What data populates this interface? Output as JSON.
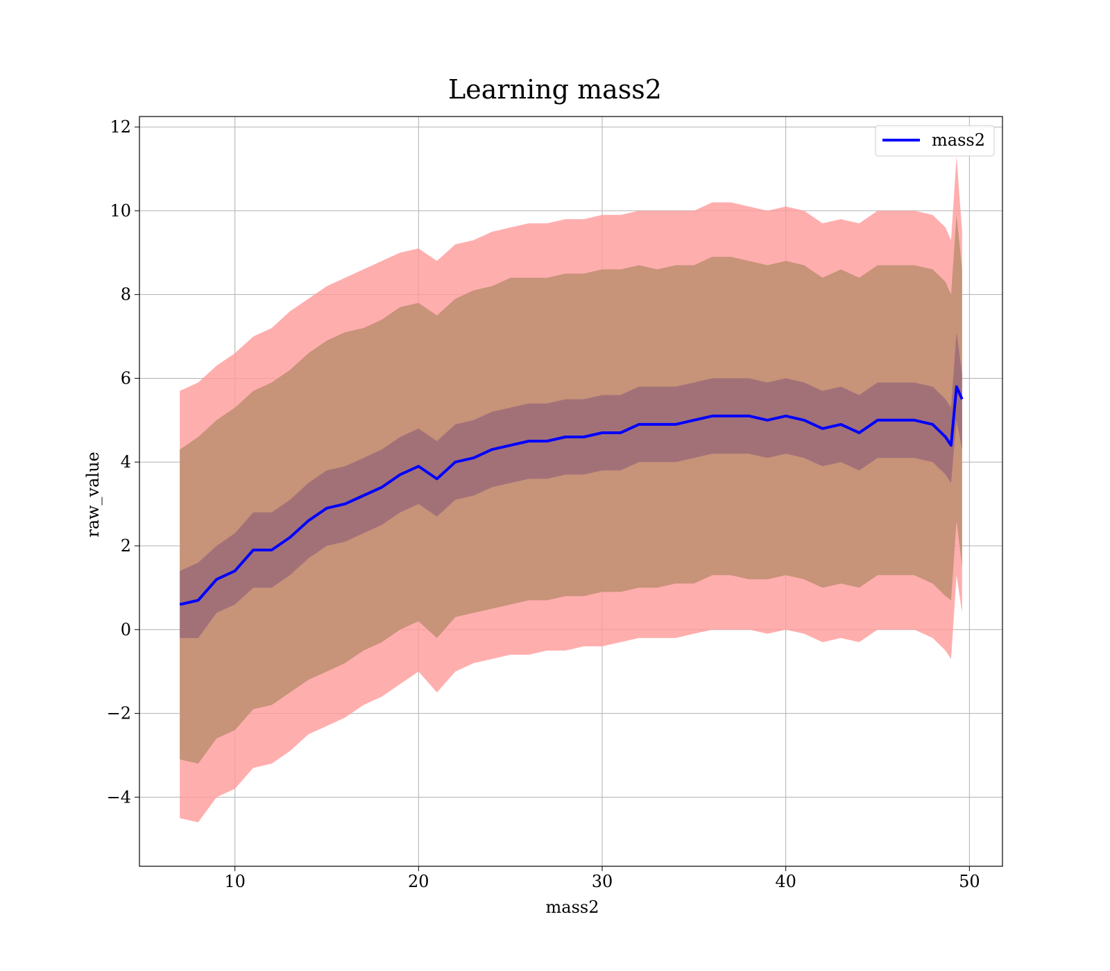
{
  "chart_data": {
    "type": "line",
    "title": "Learning mass2",
    "xlabel": "mass2",
    "ylabel": "raw_value",
    "xlim": [
      4.8,
      51.8
    ],
    "ylim": [
      -5.65,
      12.25
    ],
    "x_ticks": [
      10,
      20,
      30,
      40,
      50
    ],
    "y_ticks": [
      12,
      10,
      8,
      6,
      4,
      2,
      0,
      -2,
      -4
    ],
    "x_tick_labels": [
      "10",
      "20",
      "30",
      "40",
      "50"
    ],
    "y_tick_labels": [
      "12",
      "10",
      "8",
      "6",
      "4",
      "2",
      "0",
      "−2",
      "−4"
    ],
    "grid": true,
    "legend": {
      "position": "top-right",
      "entries": [
        "mass2"
      ]
    },
    "colors": {
      "mean": "#0000ff",
      "band_outer": "#ff9a9a",
      "band_middle": "#c49176",
      "band_inner": "#9b6b78"
    },
    "x": [
      7.0,
      8.0,
      9.0,
      10.0,
      11.0,
      12.0,
      13.0,
      14.0,
      15.0,
      16.0,
      17.0,
      18.0,
      19.0,
      20.0,
      21.0,
      22.0,
      23.0,
      24.0,
      25.0,
      26.0,
      27.0,
      28.0,
      29.0,
      30.0,
      31.0,
      32.0,
      33.0,
      34.0,
      35.0,
      36.0,
      37.0,
      38.0,
      39.0,
      40.0,
      41.0,
      42.0,
      43.0,
      44.0,
      45.0,
      46.0,
      47.0,
      48.0,
      48.7,
      49.0,
      49.3,
      49.6
    ],
    "series": [
      {
        "name": "mass2",
        "values": [
          0.6,
          0.7,
          1.2,
          1.4,
          1.9,
          1.9,
          2.2,
          2.6,
          2.9,
          3.0,
          3.2,
          3.4,
          3.7,
          3.9,
          3.6,
          4.0,
          4.1,
          4.3,
          4.4,
          4.5,
          4.5,
          4.6,
          4.6,
          4.7,
          4.7,
          4.9,
          4.9,
          4.9,
          5.0,
          5.1,
          5.1,
          5.1,
          5.0,
          5.1,
          5.0,
          4.8,
          4.9,
          4.7,
          5.0,
          5.0,
          5.0,
          4.9,
          4.6,
          4.4,
          5.8,
          5.5
        ]
      }
    ],
    "bands": [
      {
        "upper": [
          5.7,
          5.9,
          6.3,
          6.6,
          7.0,
          7.2,
          7.6,
          7.9,
          8.2,
          8.4,
          8.6,
          8.8,
          9.0,
          9.1,
          8.8,
          9.2,
          9.3,
          9.5,
          9.6,
          9.7,
          9.7,
          9.8,
          9.8,
          9.9,
          9.9,
          10.0,
          10.0,
          10.0,
          10.0,
          10.2,
          10.2,
          10.1,
          10.0,
          10.1,
          10.0,
          9.7,
          9.8,
          9.7,
          10.0,
          10.0,
          10.0,
          9.9,
          9.6,
          9.3,
          11.3,
          9.5
        ],
        "lower": [
          -4.5,
          -4.6,
          -4.0,
          -3.8,
          -3.3,
          -3.2,
          -2.9,
          -2.5,
          -2.3,
          -2.1,
          -1.8,
          -1.6,
          -1.3,
          -1.0,
          -1.5,
          -1.0,
          -0.8,
          -0.7,
          -0.6,
          -0.6,
          -0.5,
          -0.5,
          -0.4,
          -0.4,
          -0.3,
          -0.2,
          -0.2,
          -0.2,
          -0.1,
          0.0,
          0.0,
          0.0,
          -0.1,
          0.0,
          -0.1,
          -0.3,
          -0.2,
          -0.3,
          0.0,
          0.0,
          0.0,
          -0.2,
          -0.5,
          -0.7,
          1.3,
          0.4
        ]
      },
      {
        "upper": [
          4.3,
          4.6,
          5.0,
          5.3,
          5.7,
          5.9,
          6.2,
          6.6,
          6.9,
          7.1,
          7.2,
          7.4,
          7.7,
          7.8,
          7.5,
          7.9,
          8.1,
          8.2,
          8.4,
          8.4,
          8.4,
          8.5,
          8.5,
          8.6,
          8.6,
          8.7,
          8.6,
          8.7,
          8.7,
          8.9,
          8.9,
          8.8,
          8.7,
          8.8,
          8.7,
          8.4,
          8.6,
          8.4,
          8.7,
          8.7,
          8.7,
          8.6,
          8.3,
          8.0,
          9.9,
          8.6
        ],
        "lower": [
          -3.1,
          -3.2,
          -2.6,
          -2.4,
          -1.9,
          -1.8,
          -1.5,
          -1.2,
          -1.0,
          -0.8,
          -0.5,
          -0.3,
          0.0,
          0.2,
          -0.2,
          0.3,
          0.4,
          0.5,
          0.6,
          0.7,
          0.7,
          0.8,
          0.8,
          0.9,
          0.9,
          1.0,
          1.0,
          1.1,
          1.1,
          1.3,
          1.3,
          1.2,
          1.2,
          1.3,
          1.2,
          1.0,
          1.1,
          1.0,
          1.3,
          1.3,
          1.3,
          1.1,
          0.8,
          0.7,
          2.6,
          1.5
        ]
      },
      {
        "upper": [
          1.4,
          1.6,
          2.0,
          2.3,
          2.8,
          2.8,
          3.1,
          3.5,
          3.8,
          3.9,
          4.1,
          4.3,
          4.6,
          4.8,
          4.5,
          4.9,
          5.0,
          5.2,
          5.3,
          5.4,
          5.4,
          5.5,
          5.5,
          5.6,
          5.6,
          5.8,
          5.8,
          5.8,
          5.9,
          6.0,
          6.0,
          6.0,
          5.9,
          6.0,
          5.9,
          5.7,
          5.8,
          5.6,
          5.9,
          5.9,
          5.9,
          5.8,
          5.5,
          5.3,
          7.1,
          6.1
        ],
        "lower": [
          -0.2,
          -0.2,
          0.4,
          0.6,
          1.0,
          1.0,
          1.3,
          1.7,
          2.0,
          2.1,
          2.3,
          2.5,
          2.8,
          3.0,
          2.7,
          3.1,
          3.2,
          3.4,
          3.5,
          3.6,
          3.6,
          3.7,
          3.7,
          3.8,
          3.8,
          4.0,
          4.0,
          4.0,
          4.1,
          4.2,
          4.2,
          4.2,
          4.1,
          4.2,
          4.1,
          3.9,
          4.0,
          3.8,
          4.1,
          4.1,
          4.1,
          4.0,
          3.7,
          3.5,
          5.0,
          4.3
        ]
      }
    ]
  }
}
